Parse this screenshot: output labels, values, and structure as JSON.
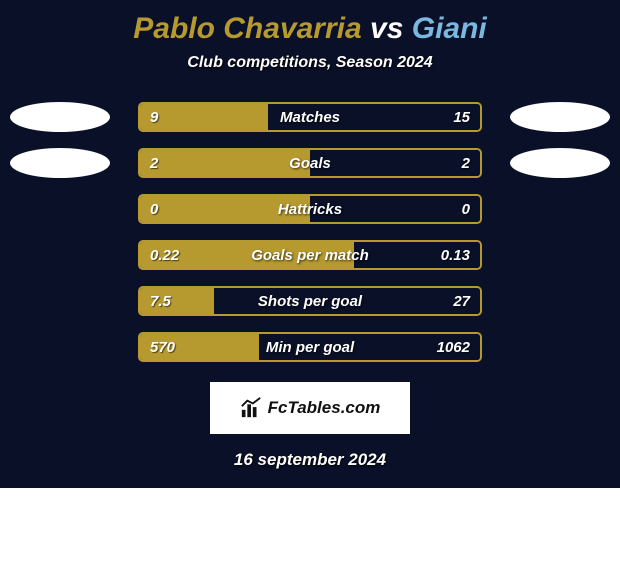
{
  "title": {
    "player1": "Pablo Chavarria",
    "vs": " vs ",
    "player2": "Giani",
    "color1": "#b69a2f",
    "vs_color": "#ffffff",
    "color2": "#7ab8e0"
  },
  "subtitle": "Club competitions, Season 2024",
  "colors": {
    "player1": "#b69a2f",
    "player2": "#7ab8e0",
    "card_bg": "#0a1028",
    "track_bg": "#0a1028"
  },
  "stats": [
    {
      "label": "Matches",
      "left_val": "9",
      "right_val": "15",
      "left_pct": 37.5,
      "show_ellipse": true
    },
    {
      "label": "Goals",
      "left_val": "2",
      "right_val": "2",
      "left_pct": 50.0,
      "show_ellipse": true
    },
    {
      "label": "Hattricks",
      "left_val": "0",
      "right_val": "0",
      "left_pct": 50.0,
      "show_ellipse": false
    },
    {
      "label": "Goals per match",
      "left_val": "0.22",
      "right_val": "0.13",
      "left_pct": 62.9,
      "show_ellipse": false
    },
    {
      "label": "Shots per goal",
      "left_val": "7.5",
      "right_val": "27",
      "left_pct": 21.7,
      "show_ellipse": false
    },
    {
      "label": "Min per goal",
      "left_val": "570",
      "right_val": "1062",
      "left_pct": 34.9,
      "show_ellipse": false
    }
  ],
  "logo": {
    "text": "FcTables.com"
  },
  "date": "16 september 2024"
}
